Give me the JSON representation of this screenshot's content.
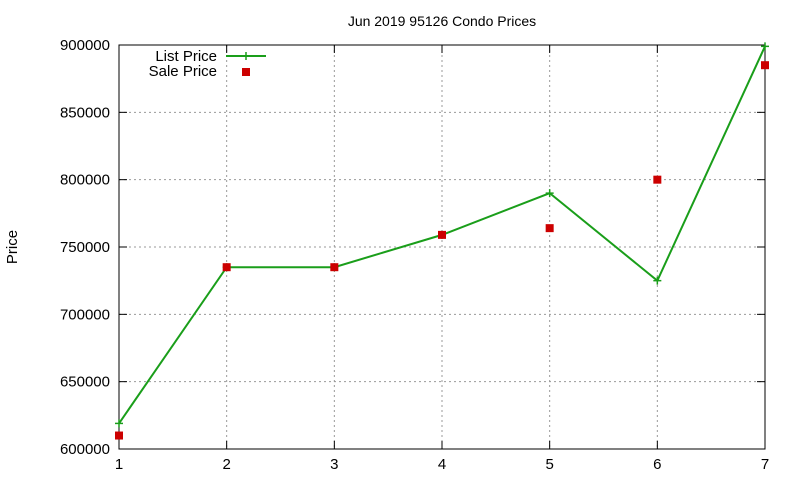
{
  "chart_data": {
    "type": "line",
    "title": "Jun 2019 95126 Condo Prices",
    "xlabel": "",
    "ylabel": "Price",
    "x": [
      1,
      2,
      3,
      4,
      5,
      6,
      7
    ],
    "xlim": [
      1,
      7
    ],
    "ylim": [
      600000,
      900000
    ],
    "xticks": [
      "1",
      "2",
      "3",
      "4",
      "5",
      "6",
      "7"
    ],
    "yticks": [
      "600000",
      "650000",
      "700000",
      "750000",
      "800000",
      "850000",
      "900000"
    ],
    "grid": true,
    "legend_position": "top-left",
    "series": [
      {
        "name": "List Price",
        "style": "line-plus-markers",
        "color": "#1a9e1a",
        "values": [
          619000,
          735000,
          735000,
          759000,
          790000,
          725000,
          899000
        ]
      },
      {
        "name": "Sale Price",
        "style": "square-points",
        "color": "#cc0000",
        "values": [
          610000,
          735000,
          735000,
          759000,
          764000,
          800000,
          885000
        ]
      }
    ]
  }
}
